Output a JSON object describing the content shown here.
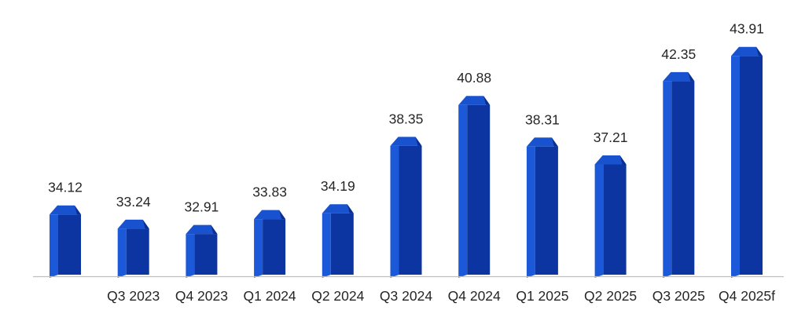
{
  "chart_data": {
    "type": "bar",
    "variant": "3d-column",
    "title": "",
    "xlabel": "",
    "ylabel": "",
    "categories": [
      "",
      "Q3 2023",
      "Q4 2023",
      "Q1 2024",
      "Q2 2024",
      "Q3 2024",
      "Q4 2024",
      "Q1 2025",
      "Q2 2025",
      "Q3 2025",
      "Q4 2025f"
    ],
    "values": [
      34.12,
      33.24,
      32.91,
      33.83,
      34.19,
      38.35,
      40.88,
      38.31,
      37.21,
      42.35,
      43.91
    ],
    "value_labels": [
      "34.12",
      "33.24",
      "32.91",
      "33.83",
      "34.19",
      "38.35",
      "40.88",
      "38.31",
      "37.21",
      "42.35",
      "43.91"
    ],
    "ylim": [
      30.3,
      46
    ],
    "value_axis_visible": false,
    "gridlines": false,
    "legend": "none",
    "data_labels_position": "above-bar",
    "colors": {
      "bar_front": "#0D35A1",
      "bar_side": "#1C59D8",
      "bar_top": "#1852CE",
      "bar_top_shade": "#0B2F90",
      "axis_line": "#BFBFBF",
      "label_text": "#262626"
    }
  }
}
